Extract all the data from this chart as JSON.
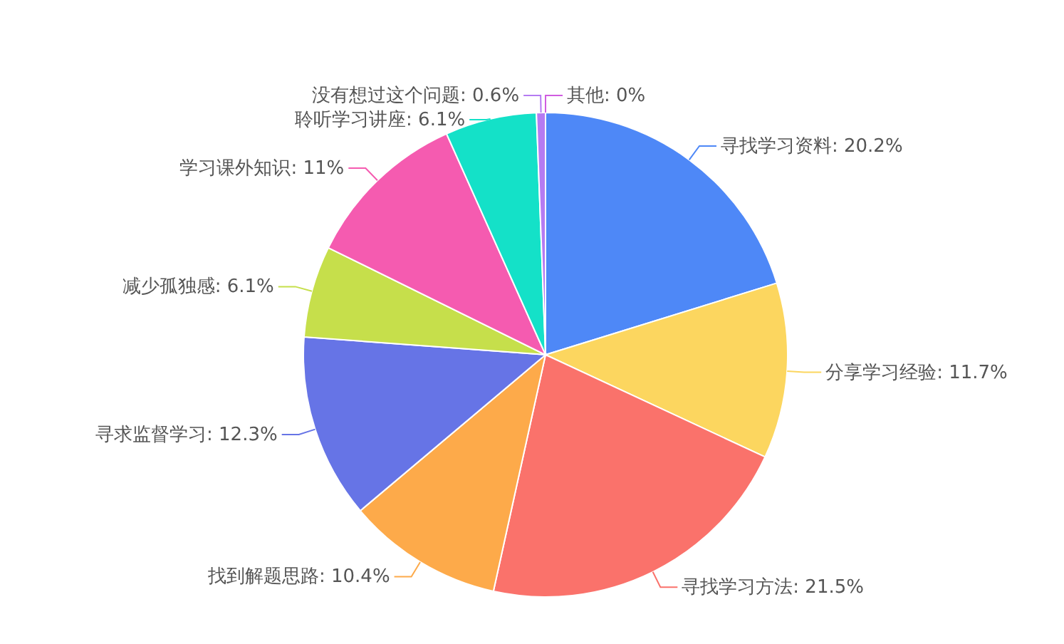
{
  "chart_data": {
    "type": "pie",
    "categories": [
      "寻找学习资料",
      "分享学习经验",
      "寻找学习方法",
      "找到解题思路",
      "寻求监督学习",
      "减少孤独感",
      "学习课外知识",
      "聆听学习讲座",
      "没有想过这个问题",
      "其他"
    ],
    "values": [
      20.2,
      11.7,
      21.5,
      10.4,
      12.3,
      6.1,
      11,
      6.1,
      0.6,
      0
    ],
    "value_labels": [
      "20.2%",
      "11.7%",
      "21.5%",
      "10.4%",
      "12.3%",
      "6.1%",
      "11%",
      "6.1%",
      "0.6%",
      "0%"
    ],
    "colors": [
      "#4e88f7",
      "#fcd65f",
      "#fa726b",
      "#fdaa4a",
      "#6674e6",
      "#c6df4b",
      "#f55bb0",
      "#14e1c8",
      "#b57bf2",
      "#d05ce0"
    ]
  }
}
